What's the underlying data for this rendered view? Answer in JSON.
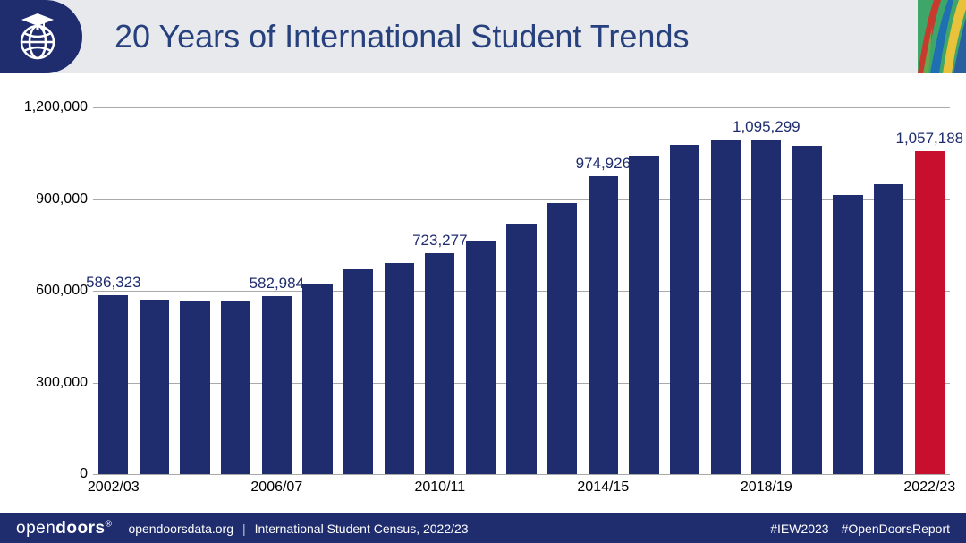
{
  "header": {
    "title": "20 Years of International Student Trends",
    "title_color": "#27407e",
    "title_fontsize": 36,
    "background_color": "#e7e9ed",
    "logo_bg": "#1f2d6f",
    "decor_colors": [
      "#3fa66a",
      "#c83a2e",
      "#1f6fb3",
      "#e8c23a",
      "#6aa84f",
      "#2a5fa0"
    ]
  },
  "chart": {
    "type": "bar",
    "ylim": [
      0,
      1200000
    ],
    "yticks": [
      0,
      300000,
      600000,
      900000,
      1200000
    ],
    "ytick_labels": [
      "0",
      "300,000",
      "600,000",
      "900,000",
      "1,200,000"
    ],
    "ylabel_fontsize": 16,
    "xlabel_fontsize": 16,
    "gridline_color": "#a9a9a9",
    "background_color": "#ffffff",
    "default_bar_color": "#1f2d6f",
    "highlight_bar_color": "#c8102e",
    "data_label_color": "#1f2d6f",
    "data_label_fontsize": 17,
    "bar_width_ratio": 0.73,
    "categories": [
      "2002/03",
      "2003/04",
      "2004/05",
      "2005/06",
      "2006/07",
      "2007/08",
      "2008/09",
      "2009/10",
      "2010/11",
      "2011/12",
      "2012/13",
      "2013/14",
      "2014/15",
      "2015/16",
      "2016/17",
      "2017/18",
      "2018/19",
      "2019/20",
      "2020/21",
      "2021/22",
      "2022/23"
    ],
    "x_tick_every": 4,
    "values": [
      586323,
      572000,
      565000,
      564000,
      582984,
      623000,
      671000,
      690000,
      723277,
      764000,
      819000,
      886000,
      974926,
      1043000,
      1078000,
      1094000,
      1095299,
      1075000,
      914000,
      948000,
      1057188
    ],
    "value_labels": [
      "586,323",
      "",
      "",
      "",
      "582,984",
      "",
      "",
      "",
      "723,277",
      "",
      "",
      "",
      "974,926",
      "",
      "",
      "",
      "1,095,299",
      "",
      "",
      "",
      "1,057,188"
    ],
    "highlight_index": 20
  },
  "footer": {
    "background_color": "#1f2d6f",
    "text_color": "#ffffff",
    "brand_light": "open",
    "brand_bold": "doors",
    "brand_reg": "®",
    "site": "opendoorsdata.org",
    "source": "International Student Census, 2022/23",
    "hashtag1": "#IEW2023",
    "hashtag2": "#OpenDoorsReport"
  }
}
